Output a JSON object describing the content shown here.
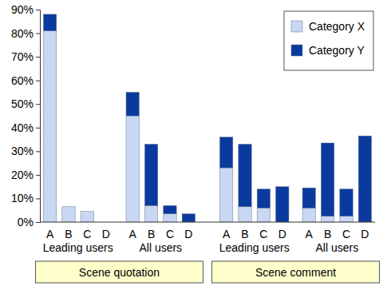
{
  "chart_data": {
    "type": "bar",
    "stacked": true,
    "legend": "upper right",
    "categories": [
      "A",
      "B",
      "C",
      "D",
      "A",
      "B",
      "C",
      "D",
      "A",
      "B",
      "C",
      "D",
      "A",
      "B",
      "C",
      "D"
    ],
    "groups": [
      "Leading users",
      "All users",
      "Leading users",
      "All users"
    ],
    "sections": [
      "Scene quotation",
      "Scene comment"
    ],
    "series": [
      {
        "name": "Category X",
        "color": "#c8d8f2",
        "values": [
          81,
          6.5,
          4.5,
          0,
          45,
          7,
          3.5,
          0,
          23,
          6.5,
          6,
          0,
          6,
          2.5,
          2.5,
          0
        ]
      },
      {
        "name": "Category Y",
        "color": "#0b3a9e",
        "values": [
          7,
          0,
          0,
          0,
          10,
          26,
          3.5,
          3.5,
          13,
          26.5,
          8,
          15,
          8.5,
          31,
          11.5,
          36.5
        ]
      }
    ],
    "ylim": [
      0,
      90
    ],
    "yticks": [
      {
        "value": 0,
        "label": "0%"
      },
      {
        "value": 10,
        "label": "10%"
      },
      {
        "value": 20,
        "label": "20%"
      },
      {
        "value": 30,
        "label": "30%"
      },
      {
        "value": 40,
        "label": "40%"
      },
      {
        "value": 50,
        "label": "50%"
      },
      {
        "value": 60,
        "label": "60%"
      },
      {
        "value": 70,
        "label": "70%"
      },
      {
        "value": 80,
        "label": "80%"
      },
      {
        "value": 90,
        "label": "90%"
      }
    ]
  }
}
